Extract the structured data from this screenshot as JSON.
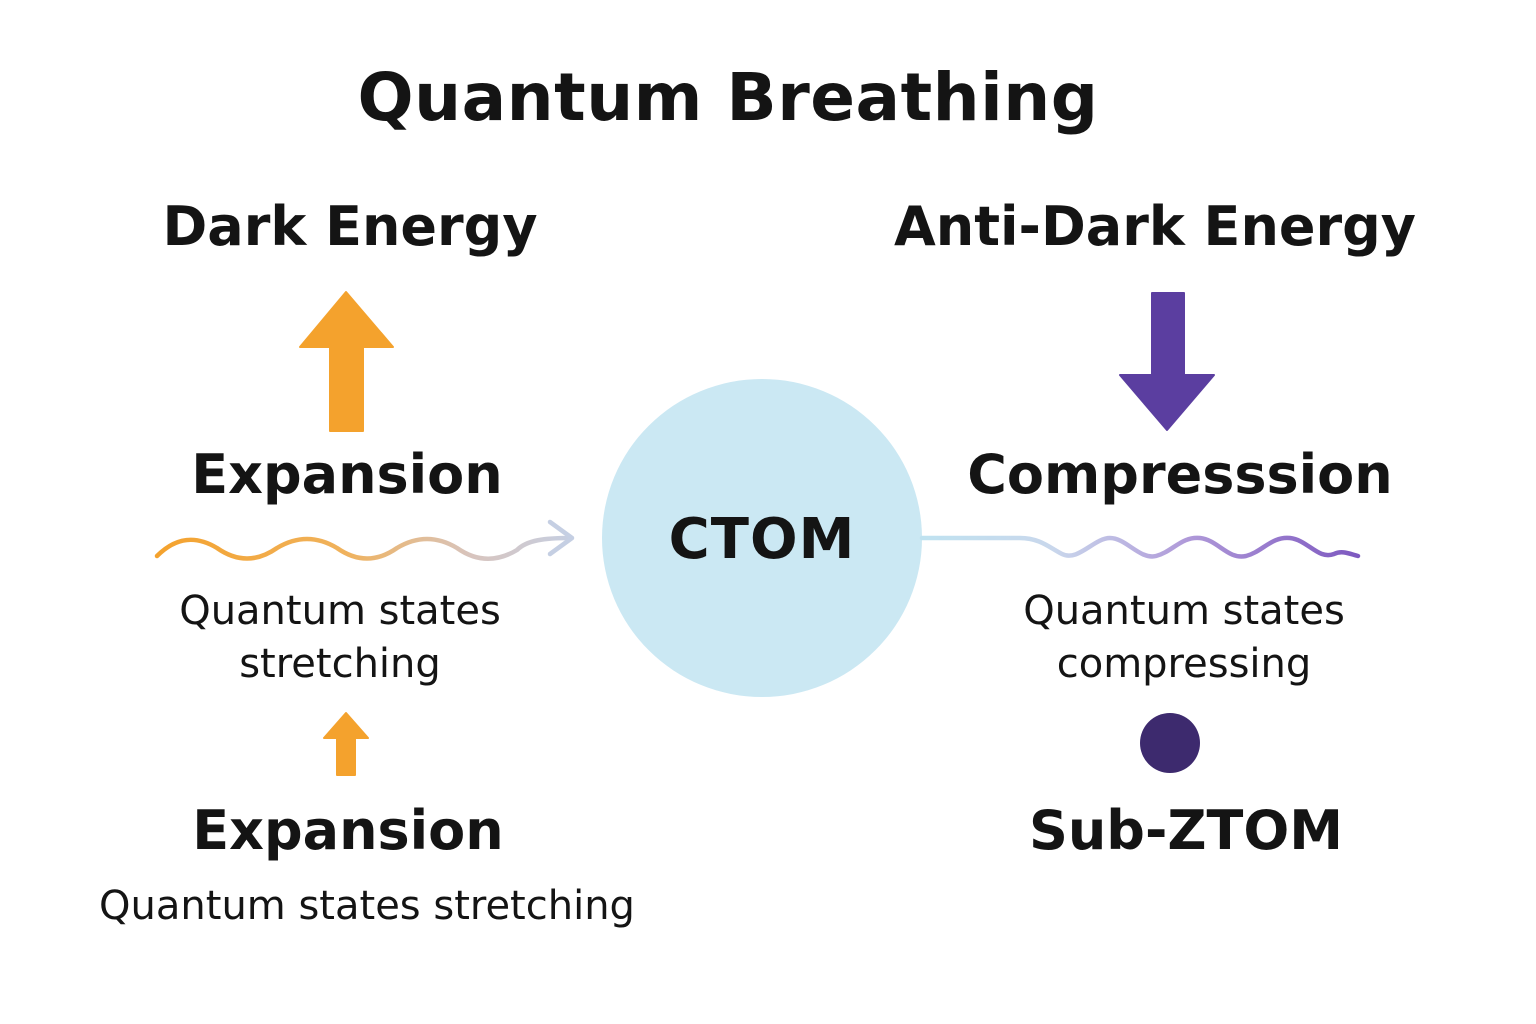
{
  "title": "Quantum Breathing",
  "left": {
    "top_label": "Dark Energy",
    "process_label": "Expansion",
    "process_desc_line1": "Quantum states",
    "process_desc_line2": "stretching",
    "bottom_label": "Expansion",
    "bottom_desc": "Quantum states stretching",
    "arrow_color": "#f4a22d",
    "wave_color": "#f4a22d"
  },
  "center": {
    "label": "CTOM",
    "circle_color": "#cbe8f3"
  },
  "right": {
    "top_label": "Anti-Dark Energy",
    "process_label": "Compresssion",
    "process_desc_line1": "Quantum states",
    "process_desc_line2": "compressing",
    "bottom_label": "Sub-ZTOM",
    "arrow_color": "#5b3ea0",
    "wave_color": "#8e6cc9",
    "dot_color": "#3d2a6e"
  }
}
